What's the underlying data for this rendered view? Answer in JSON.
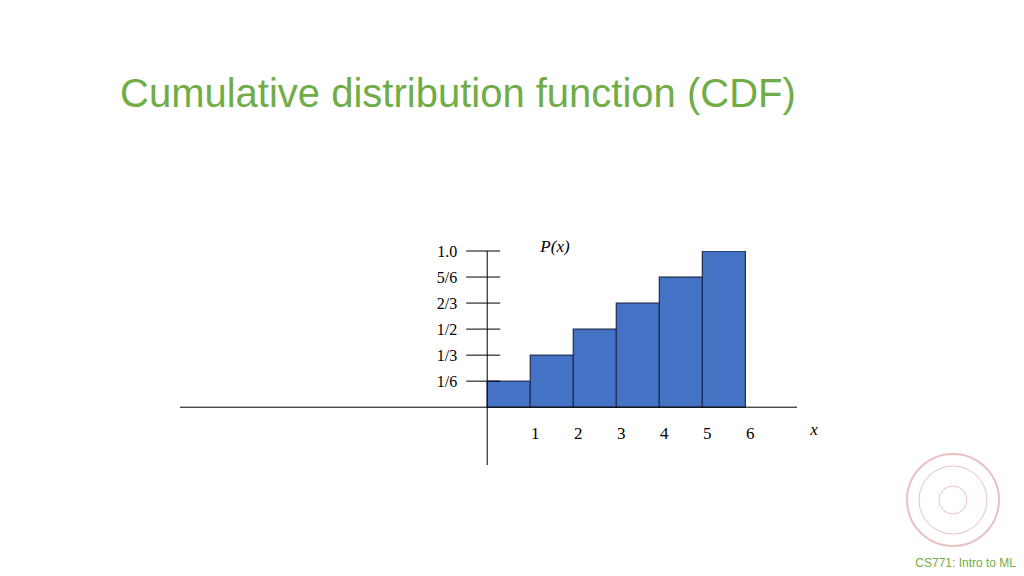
{
  "chart_data": {
    "type": "bar",
    "title": "Cumulative distribution function (CDF)",
    "x_label": "x",
    "y_label": "P(x)",
    "x": [
      1,
      2,
      3,
      4,
      5,
      6
    ],
    "values": [
      0.1667,
      0.3333,
      0.5,
      0.6667,
      0.8333,
      1.0
    ],
    "color": "#4472c4",
    "xlim": [
      -7.14,
      7.2
    ],
    "xticks": [
      1,
      2,
      3,
      4,
      5,
      6
    ],
    "ylim": [
      -0.37,
      1.0
    ],
    "yticks": [
      {
        "value": 0.1667,
        "label": "1/6"
      },
      {
        "value": 0.3333,
        "label": "1/3"
      },
      {
        "value": 0.5,
        "label": "1/2"
      },
      {
        "value": 0.6667,
        "label": "2/3"
      },
      {
        "value": 0.8333,
        "label": "5/6"
      },
      {
        "value": 1.0,
        "label": "1.0"
      }
    ],
    "grid": false
  },
  "footer": "CS771: Intro to ML"
}
